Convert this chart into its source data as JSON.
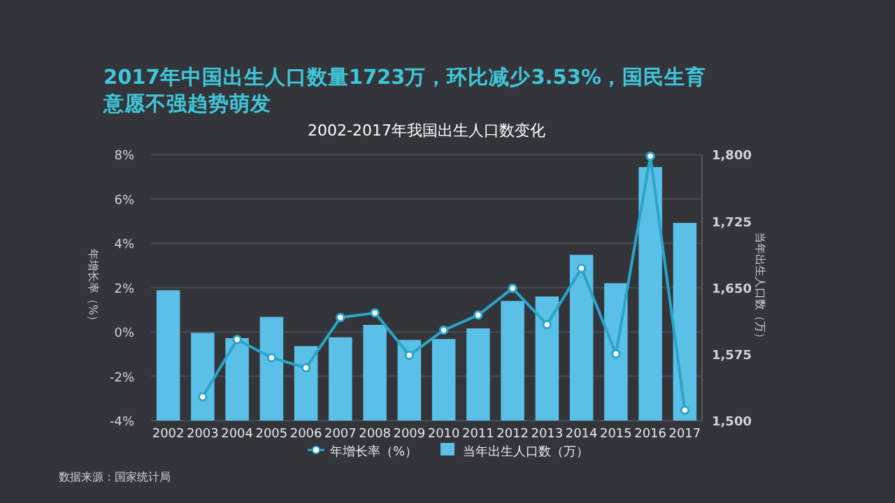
{
  "chart_data": {
    "type": "bar",
    "title": "2017年中国出生人口数量1723万，环比减少3.53%，国民生育意愿不强趋势萌发",
    "subtitle": "2002-2017年我国出生人口数变化",
    "ylabel": "年增长率（%）",
    "y2label": "当年出生人口数（万）",
    "categories": [
      "2002",
      "2003",
      "2004",
      "2005",
      "2006",
      "2007",
      "2008",
      "2009",
      "2010",
      "2011",
      "2012",
      "2013",
      "2014",
      "2015",
      "2016",
      "2017"
    ],
    "series": [
      {
        "name": "年增长率（%）",
        "type": "line",
        "color": "#2aa5c8",
        "marker": "circle",
        "values": [
          null,
          -2.93,
          -0.34,
          -1.16,
          -1.62,
          0.65,
          0.86,
          -1.05,
          0.08,
          0.76,
          1.97,
          0.33,
          2.87,
          -0.99,
          7.93,
          -3.53
        ]
      },
      {
        "name": "当年出生人口数（万）",
        "axis": "y2",
        "color": "#5bc0e8",
        "values": [
          1647,
          1599,
          1593,
          1617,
          1584,
          1594,
          1608,
          1591,
          1592,
          1604,
          1635,
          1640,
          1687,
          1655,
          1786,
          1723
        ]
      }
    ],
    "ylim": [
      -4,
      8
    ],
    "yticks": [
      {
        "value": -4,
        "label": "-4%"
      },
      {
        "value": -2,
        "label": "-2%"
      },
      {
        "value": 0,
        "label": "0%"
      },
      {
        "value": 2,
        "label": "2%"
      },
      {
        "value": 4,
        "label": "4%"
      },
      {
        "value": 6,
        "label": "6%"
      },
      {
        "value": 8,
        "label": "8%"
      }
    ],
    "y2lim": [
      1500,
      1800
    ],
    "y2ticks": [
      {
        "value": 1500,
        "label": "1,500"
      },
      {
        "value": 1575,
        "label": "1,575"
      },
      {
        "value": 1650,
        "label": "1,650"
      },
      {
        "value": 1725,
        "label": "1,725"
      },
      {
        "value": 1800,
        "label": "1,800"
      }
    ],
    "grid": "y",
    "legend": "bottom",
    "annotations": [
      "数据来源：国家统计局"
    ]
  }
}
